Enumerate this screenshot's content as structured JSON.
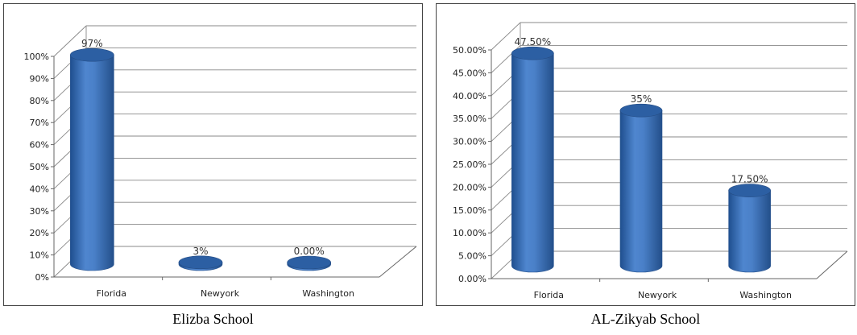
{
  "chart_data": [
    {
      "type": "bar",
      "caption": "Elizba School",
      "categories": [
        "Florida",
        "Newyork",
        "Washington"
      ],
      "values": [
        97,
        3,
        0
      ],
      "data_labels": [
        "97%",
        "3%",
        "0.00%"
      ],
      "y_ticks": [
        "0%",
        "10%",
        "20%",
        "30%",
        "40%",
        "50%",
        "60%",
        "70%",
        "80%",
        "90%",
        "100%"
      ],
      "ylim": [
        0,
        100
      ],
      "grid": true,
      "legend": "none",
      "bar_color": "#3b70b8"
    },
    {
      "type": "bar",
      "caption": "AL-Zikyab School",
      "categories": [
        "Florida",
        "Newyork",
        "Washington"
      ],
      "values": [
        47.5,
        35,
        17.5
      ],
      "data_labels": [
        "47.50%",
        "35%",
        "17.50%"
      ],
      "y_ticks": [
        "0.00%",
        "5.00%",
        "10.00%",
        "15.00%",
        "20.00%",
        "25.00%",
        "30.00%",
        "35.00%",
        "40.00%",
        "45.00%",
        "50.00%"
      ],
      "ylim": [
        0,
        50
      ],
      "grid": true,
      "legend": "none",
      "bar_color": "#3b70b8"
    }
  ]
}
